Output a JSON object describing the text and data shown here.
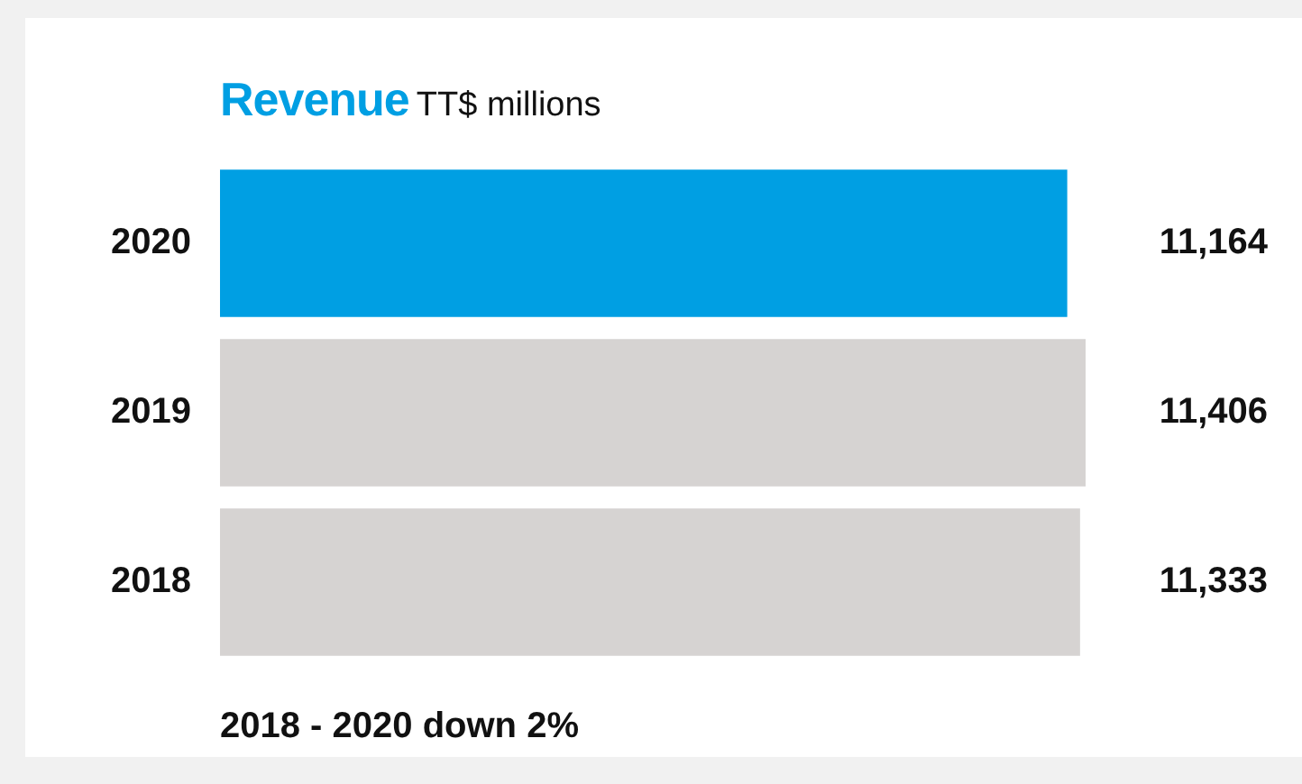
{
  "chart_data": {
    "type": "bar",
    "orientation": "horizontal",
    "title": "Revenue",
    "subtitle": "TT$ millions",
    "categories": [
      "2020",
      "2019",
      "2018"
    ],
    "values": [
      11164,
      11406,
      11333
    ],
    "colors": [
      "#009fe3",
      "#d6d3d2",
      "#d6d3d2"
    ],
    "value_labels": [
      "11,164",
      "11,406",
      "11,333"
    ],
    "annotations": [
      "2018 - 2020 down 2%"
    ],
    "grid": false,
    "legend": false
  }
}
